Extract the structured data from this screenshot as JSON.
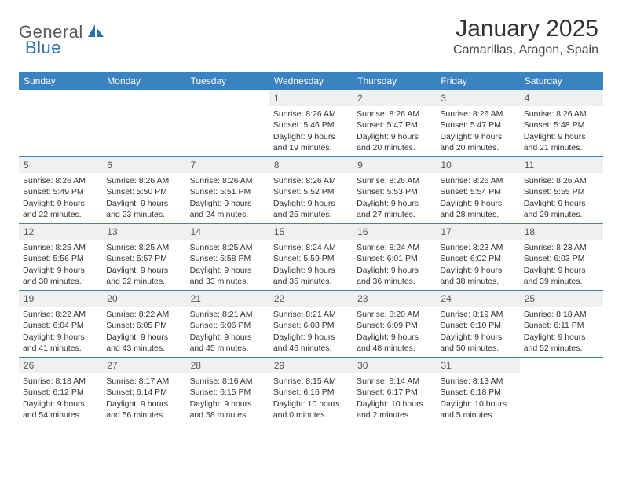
{
  "logo": {
    "text1": "General",
    "text2": "Blue"
  },
  "title": "January 2025",
  "location": "Camarillas, Aragon, Spain",
  "colors": {
    "header_bg": "#3b83c0",
    "header_text": "#ffffff",
    "daynum_bg": "#eef0f2",
    "week_border": "#3b83c0",
    "body_text": "#333333"
  },
  "dayNames": [
    "Sunday",
    "Monday",
    "Tuesday",
    "Wednesday",
    "Thursday",
    "Friday",
    "Saturday"
  ],
  "weeks": [
    [
      {
        "n": "",
        "empty": true
      },
      {
        "n": "",
        "empty": true
      },
      {
        "n": "",
        "empty": true
      },
      {
        "n": "1",
        "sr": "Sunrise: 8:26 AM",
        "ss": "Sunset: 5:46 PM",
        "dl1": "Daylight: 9 hours",
        "dl2": "and 19 minutes."
      },
      {
        "n": "2",
        "sr": "Sunrise: 8:26 AM",
        "ss": "Sunset: 5:47 PM",
        "dl1": "Daylight: 9 hours",
        "dl2": "and 20 minutes."
      },
      {
        "n": "3",
        "sr": "Sunrise: 8:26 AM",
        "ss": "Sunset: 5:47 PM",
        "dl1": "Daylight: 9 hours",
        "dl2": "and 20 minutes."
      },
      {
        "n": "4",
        "sr": "Sunrise: 8:26 AM",
        "ss": "Sunset: 5:48 PM",
        "dl1": "Daylight: 9 hours",
        "dl2": "and 21 minutes."
      }
    ],
    [
      {
        "n": "5",
        "sr": "Sunrise: 8:26 AM",
        "ss": "Sunset: 5:49 PM",
        "dl1": "Daylight: 9 hours",
        "dl2": "and 22 minutes."
      },
      {
        "n": "6",
        "sr": "Sunrise: 8:26 AM",
        "ss": "Sunset: 5:50 PM",
        "dl1": "Daylight: 9 hours",
        "dl2": "and 23 minutes."
      },
      {
        "n": "7",
        "sr": "Sunrise: 8:26 AM",
        "ss": "Sunset: 5:51 PM",
        "dl1": "Daylight: 9 hours",
        "dl2": "and 24 minutes."
      },
      {
        "n": "8",
        "sr": "Sunrise: 8:26 AM",
        "ss": "Sunset: 5:52 PM",
        "dl1": "Daylight: 9 hours",
        "dl2": "and 25 minutes."
      },
      {
        "n": "9",
        "sr": "Sunrise: 8:26 AM",
        "ss": "Sunset: 5:53 PM",
        "dl1": "Daylight: 9 hours",
        "dl2": "and 27 minutes."
      },
      {
        "n": "10",
        "sr": "Sunrise: 8:26 AM",
        "ss": "Sunset: 5:54 PM",
        "dl1": "Daylight: 9 hours",
        "dl2": "and 28 minutes."
      },
      {
        "n": "11",
        "sr": "Sunrise: 8:26 AM",
        "ss": "Sunset: 5:55 PM",
        "dl1": "Daylight: 9 hours",
        "dl2": "and 29 minutes."
      }
    ],
    [
      {
        "n": "12",
        "sr": "Sunrise: 8:25 AM",
        "ss": "Sunset: 5:56 PM",
        "dl1": "Daylight: 9 hours",
        "dl2": "and 30 minutes."
      },
      {
        "n": "13",
        "sr": "Sunrise: 8:25 AM",
        "ss": "Sunset: 5:57 PM",
        "dl1": "Daylight: 9 hours",
        "dl2": "and 32 minutes."
      },
      {
        "n": "14",
        "sr": "Sunrise: 8:25 AM",
        "ss": "Sunset: 5:58 PM",
        "dl1": "Daylight: 9 hours",
        "dl2": "and 33 minutes."
      },
      {
        "n": "15",
        "sr": "Sunrise: 8:24 AM",
        "ss": "Sunset: 5:59 PM",
        "dl1": "Daylight: 9 hours",
        "dl2": "and 35 minutes."
      },
      {
        "n": "16",
        "sr": "Sunrise: 8:24 AM",
        "ss": "Sunset: 6:01 PM",
        "dl1": "Daylight: 9 hours",
        "dl2": "and 36 minutes."
      },
      {
        "n": "17",
        "sr": "Sunrise: 8:23 AM",
        "ss": "Sunset: 6:02 PM",
        "dl1": "Daylight: 9 hours",
        "dl2": "and 38 minutes."
      },
      {
        "n": "18",
        "sr": "Sunrise: 8:23 AM",
        "ss": "Sunset: 6:03 PM",
        "dl1": "Daylight: 9 hours",
        "dl2": "and 39 minutes."
      }
    ],
    [
      {
        "n": "19",
        "sr": "Sunrise: 8:22 AM",
        "ss": "Sunset: 6:04 PM",
        "dl1": "Daylight: 9 hours",
        "dl2": "and 41 minutes."
      },
      {
        "n": "20",
        "sr": "Sunrise: 8:22 AM",
        "ss": "Sunset: 6:05 PM",
        "dl1": "Daylight: 9 hours",
        "dl2": "and 43 minutes."
      },
      {
        "n": "21",
        "sr": "Sunrise: 8:21 AM",
        "ss": "Sunset: 6:06 PM",
        "dl1": "Daylight: 9 hours",
        "dl2": "and 45 minutes."
      },
      {
        "n": "22",
        "sr": "Sunrise: 8:21 AM",
        "ss": "Sunset: 6:08 PM",
        "dl1": "Daylight: 9 hours",
        "dl2": "and 46 minutes."
      },
      {
        "n": "23",
        "sr": "Sunrise: 8:20 AM",
        "ss": "Sunset: 6:09 PM",
        "dl1": "Daylight: 9 hours",
        "dl2": "and 48 minutes."
      },
      {
        "n": "24",
        "sr": "Sunrise: 8:19 AM",
        "ss": "Sunset: 6:10 PM",
        "dl1": "Daylight: 9 hours",
        "dl2": "and 50 minutes."
      },
      {
        "n": "25",
        "sr": "Sunrise: 8:18 AM",
        "ss": "Sunset: 6:11 PM",
        "dl1": "Daylight: 9 hours",
        "dl2": "and 52 minutes."
      }
    ],
    [
      {
        "n": "26",
        "sr": "Sunrise: 8:18 AM",
        "ss": "Sunset: 6:12 PM",
        "dl1": "Daylight: 9 hours",
        "dl2": "and 54 minutes."
      },
      {
        "n": "27",
        "sr": "Sunrise: 8:17 AM",
        "ss": "Sunset: 6:14 PM",
        "dl1": "Daylight: 9 hours",
        "dl2": "and 56 minutes."
      },
      {
        "n": "28",
        "sr": "Sunrise: 8:16 AM",
        "ss": "Sunset: 6:15 PM",
        "dl1": "Daylight: 9 hours",
        "dl2": "and 58 minutes."
      },
      {
        "n": "29",
        "sr": "Sunrise: 8:15 AM",
        "ss": "Sunset: 6:16 PM",
        "dl1": "Daylight: 10 hours",
        "dl2": "and 0 minutes."
      },
      {
        "n": "30",
        "sr": "Sunrise: 8:14 AM",
        "ss": "Sunset: 6:17 PM",
        "dl1": "Daylight: 10 hours",
        "dl2": "and 2 minutes."
      },
      {
        "n": "31",
        "sr": "Sunrise: 8:13 AM",
        "ss": "Sunset: 6:18 PM",
        "dl1": "Daylight: 10 hours",
        "dl2": "and 5 minutes."
      },
      {
        "n": "",
        "empty": true
      }
    ]
  ]
}
